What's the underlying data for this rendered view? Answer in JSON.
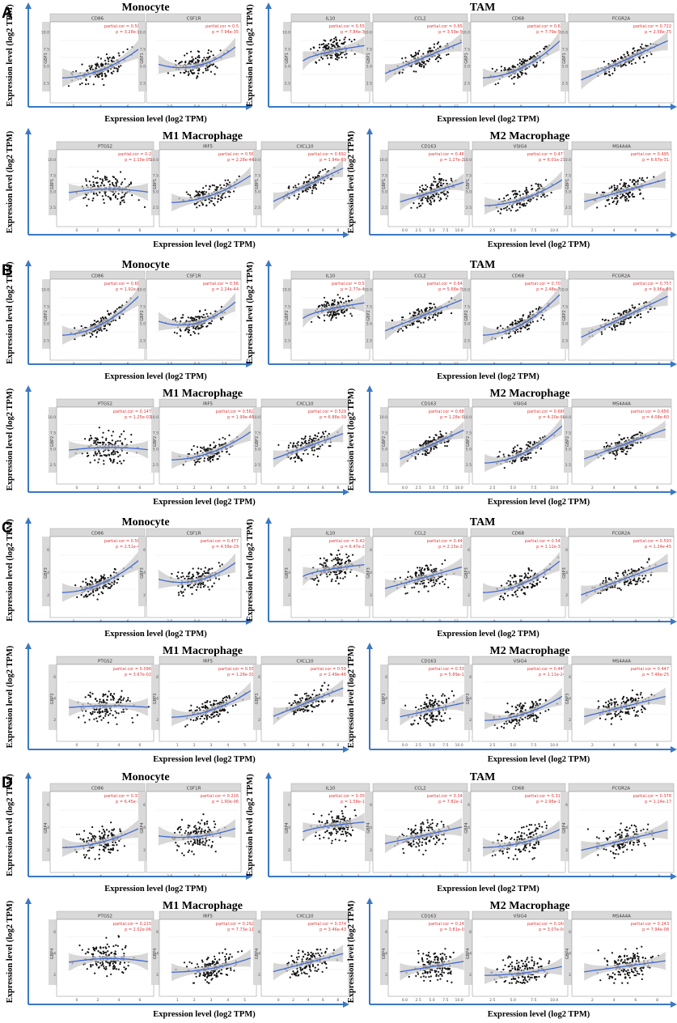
{
  "colors": {
    "axis_arrow": "#3b78c4",
    "fit_line": "#4169d4",
    "ci_band": "#c9c9c9",
    "points": "#111111",
    "stats": "#e0393a",
    "strip": "#d9d9d9"
  },
  "axis_label_y": "Expression level (log2 TPM)",
  "axis_label_x": "Expression level (log2 TPM)",
  "partial_cor_prefix": "partial.cor = ",
  "p_prefix": "p = ",
  "chart_data": [
    {
      "panel": "A",
      "gene": "GBP1",
      "groups": [
        {
          "title": "Monocyte",
          "subplots": [
            {
              "marker": "CD86",
              "cor": "0.504",
              "p": "3.28e-33",
              "xticks": [
                2,
                4,
                6
              ],
              "yticks": [
                "2.5",
                "5.0",
                "7.5",
                "10.0"
              ]
            },
            {
              "marker": "CSF1R",
              "cor": "0.5",
              "p": "7.94e-35",
              "xticks": [
                "2.5",
                "5.0",
                "7.5"
              ],
              "yticks": [
                "2.5",
                "5.0",
                "7.5",
                "10.0"
              ]
            }
          ]
        },
        {
          "title": "TAM",
          "subplots": [
            {
              "marker": "IL10",
              "cor": "0.558",
              "p": "7.84e-39",
              "xticks": [
                0,
                1,
                2,
                3
              ],
              "yticks": [
                "2.5",
                "5.0",
                "7.5",
                "10.0"
              ]
            },
            {
              "marker": "CCL2",
              "cor": "0.652",
              "p": "3.59e-58",
              "xticks": [
                0,
                3,
                6,
                9,
                12
              ],
              "yticks": [
                "2.5",
                "5.0",
                "7.5",
                "10.0"
              ]
            },
            {
              "marker": "CD68",
              "cor": "0.64",
              "p": "7.79e-58",
              "xticks": [
                4,
                6,
                8
              ],
              "yticks": [
                "2.5",
                "5.0",
                "7.5",
                "10.0"
              ]
            },
            {
              "marker": "FCGR2A",
              "cor": "0.722",
              "p": "2.58e-75",
              "xticks": [
                2,
                4,
                6,
                8
              ],
              "yticks": [
                "2.5",
                "5.0",
                "7.5",
                "10.0"
              ]
            }
          ]
        },
        {
          "title": "M1 Macrophage",
          "subplots": [
            {
              "marker": "PTGS2",
              "cor": "0.2",
              "p": "1.10e-05",
              "xticks": [
                0,
                2,
                4,
                6
              ],
              "yticks": [
                "2.5",
                "5.0",
                "7.5",
                "10.0"
              ]
            },
            {
              "marker": "IRF5",
              "cor": "0.56",
              "p": "2.28e-44",
              "xticks": [
                1,
                2,
                3,
                4,
                5
              ],
              "yticks": [
                "2.5",
                "5.0",
                "7.5",
                "10.0"
              ]
            },
            {
              "marker": "CXCL10",
              "cor": "0.692",
              "p": "1.94e-69",
              "xticks": [
                0,
                2,
                4,
                6,
                8
              ],
              "yticks": [
                "2.5",
                "5.0",
                "7.5",
                "10.0"
              ]
            }
          ]
        },
        {
          "title": "M2 Macrophage",
          "subplots": [
            {
              "marker": "CD163",
              "cor": "0.465",
              "p": "1.27e-29",
              "xticks": [
                "0.0",
                "2.5",
                "5.0",
                "7.5",
                "10.0"
              ],
              "yticks": [
                "2.5",
                "5.0",
                "7.5",
                "10.0"
              ]
            },
            {
              "marker": "VSIG4",
              "cor": "0.477",
              "p": "6.01e-27",
              "xticks": [
                "2.5",
                "5.0",
                "7.5",
                "10.0"
              ],
              "yticks": [
                "2.5",
                "5.0",
                "7.5",
                "10.0"
              ]
            },
            {
              "marker": "MS4A4A",
              "cor": "0.495",
              "p": "6.67e-31",
              "xticks": [
                2,
                4,
                6,
                8
              ],
              "yticks": [
                "2.5",
                "5.0",
                "7.5",
                "10.0"
              ]
            }
          ]
        }
      ]
    },
    {
      "panel": "B",
      "gene": "GBP2",
      "groups": [
        {
          "title": "Monocyte",
          "subplots": [
            {
              "marker": "CD86",
              "cor": "0.685",
              "p": "1.92e-67",
              "xticks": [
                2,
                4,
                6
              ],
              "yticks": [
                "2.5",
                "5.0",
                "7.5",
                "10.0"
              ]
            },
            {
              "marker": "CSF1R",
              "cor": "0.56",
              "p": "2.24e-44",
              "xticks": [
                "2.5",
                "5.0",
                "7.5"
              ],
              "yticks": [
                "2.5",
                "5.0",
                "7.5",
                "10.0"
              ]
            }
          ]
        },
        {
          "title": "TAM",
          "subplots": [
            {
              "marker": "IL10",
              "cor": "0.56",
              "p": "2.77e-44",
              "xticks": [
                0,
                1,
                2,
                3
              ],
              "yticks": [
                "2.5",
                "5.0",
                "7.5",
                "10.0"
              ]
            },
            {
              "marker": "CCL2",
              "cor": "0.647",
              "p": "5.68e-58",
              "xticks": [
                0,
                3,
                6,
                9,
                12
              ],
              "yticks": [
                "2.5",
                "5.0",
                "7.5",
                "10.0"
              ]
            },
            {
              "marker": "CD68",
              "cor": "0.705",
              "p": "2.48e-74",
              "xticks": [
                4,
                6,
                8
              ],
              "yticks": [
                "2.5",
                "5.0",
                "7.5",
                "10.0"
              ]
            },
            {
              "marker": "FCGR2A",
              "cor": "0.757",
              "p": "9.96e-89",
              "xticks": [
                2,
                4,
                6,
                8
              ],
              "yticks": [
                "2.5",
                "5.0",
                "7.5",
                "10.0"
              ]
            }
          ]
        },
        {
          "title": "M1 Macrophage",
          "subplots": [
            {
              "marker": "PTGS2",
              "cor": "0.147",
              "p": "1.25e-03",
              "xticks": [
                0,
                2,
                4,
                6
              ],
              "yticks": [
                "2.5",
                "5.0",
                "7.5",
                "10.0"
              ]
            },
            {
              "marker": "IRF5",
              "cor": "0.582",
              "p": "1.99e-46",
              "xticks": [
                1,
                2,
                3,
                4,
                5
              ],
              "yticks": [
                "2.5",
                "5.0",
                "7.5",
                "10.0"
              ]
            },
            {
              "marker": "CXCL10",
              "cor": "0.529",
              "p": "6.88e-39",
              "xticks": [
                0,
                2,
                4,
                6,
                8
              ],
              "yticks": [
                "2.5",
                "5.0",
                "7.5",
                "10.0"
              ]
            }
          ]
        },
        {
          "title": "M2 Macrophage",
          "subplots": [
            {
              "marker": "CD163",
              "cor": "0.685",
              "p": "1.28e-58",
              "xticks": [
                "0.0",
                "2.5",
                "5.0",
                "7.5",
                "10.0"
              ],
              "yticks": [
                "2.5",
                "5.0",
                "7.5",
                "10.0"
              ]
            },
            {
              "marker": "VSIG4",
              "cor": "0.686",
              "p": "4.20e-66",
              "xticks": [
                "2.5",
                "5.0",
                "7.5",
                "10.0"
              ],
              "yticks": [
                "2.5",
                "5.0",
                "7.5",
                "10.0"
              ]
            },
            {
              "marker": "MS4A4A",
              "cor": "0.656",
              "p": "4.08e-60",
              "xticks": [
                2,
                4,
                6,
                8
              ],
              "yticks": [
                "2.5",
                "5.0",
                "7.5",
                "10.0"
              ]
            }
          ]
        }
      ]
    },
    {
      "panel": "C",
      "gene": "GBP3",
      "groups": [
        {
          "title": "Monocyte",
          "subplots": [
            {
              "marker": "CD86",
              "cor": "0.565",
              "p": "2.51e-42",
              "xticks": [
                2,
                4,
                6
              ],
              "yticks": [
                2,
                4,
                6
              ]
            },
            {
              "marker": "CSF1R",
              "cor": "0.477",
              "p": "4.58e-29",
              "xticks": [
                "2.5",
                "5.0",
                "7.5"
              ],
              "yticks": [
                2,
                4,
                6
              ]
            }
          ]
        },
        {
          "title": "TAM",
          "subplots": [
            {
              "marker": "IL10",
              "cor": "0.429",
              "p": "6.47e-23",
              "xticks": [
                0,
                1,
                2,
                3
              ],
              "yticks": [
                2,
                4,
                6
              ]
            },
            {
              "marker": "CCL2",
              "cor": "0.448",
              "p": "2.15e-25",
              "xticks": [
                0,
                3,
                6,
                9,
                12
              ],
              "yticks": [
                2,
                4,
                6
              ]
            },
            {
              "marker": "CD68",
              "cor": "0.545",
              "p": "1.12e-38",
              "xticks": [
                4,
                6,
                8
              ],
              "yticks": [
                2,
                4,
                6
              ]
            },
            {
              "marker": "FCGR2A",
              "cor": "0.593",
              "p": "1.24e-45",
              "xticks": [
                2,
                4,
                6,
                8
              ],
              "yticks": [
                2,
                4,
                6
              ]
            }
          ]
        },
        {
          "title": "M1 Macrophage",
          "subplots": [
            {
              "marker": "PTGS2",
              "cor": "0.096",
              "p": "3.67e-02",
              "xticks": [
                0,
                2,
                4,
                6
              ],
              "yticks": [
                2,
                4,
                6
              ]
            },
            {
              "marker": "IRF5",
              "cor": "0.55",
              "p": "1.28e-39",
              "xticks": [
                1,
                2,
                3,
                4,
                5
              ],
              "yticks": [
                2,
                4,
                6
              ]
            },
            {
              "marker": "CXCL10",
              "cor": "0.59",
              "p": "2.49e-46",
              "xticks": [
                0,
                2,
                4,
                6,
                8
              ],
              "yticks": [
                2,
                4,
                6
              ]
            }
          ]
        },
        {
          "title": "M2 Macrophage",
          "subplots": [
            {
              "marker": "CD163",
              "cor": "0.332",
              "p": "5.89e-14",
              "xticks": [
                "0.0",
                "2.5",
                "5.0",
                "7.5",
                "10.0"
              ],
              "yticks": [
                2,
                4,
                6
              ]
            },
            {
              "marker": "VSIG4",
              "cor": "0.445",
              "p": "1.11e-24",
              "xticks": [
                "2.5",
                "5.0",
                "7.5",
                "10.0"
              ],
              "yticks": [
                2,
                4,
                6
              ]
            },
            {
              "marker": "MS4A4A",
              "cor": "0.447",
              "p": "7.46e-25",
              "xticks": [
                2,
                4,
                6,
                8
              ],
              "yticks": [
                2,
                4,
                6
              ]
            }
          ]
        }
      ]
    },
    {
      "panel": "D",
      "gene": "GBP4",
      "groups": [
        {
          "title": "Monocyte",
          "subplots": [
            {
              "marker": "CD86",
              "cor": "0.334",
              "p": "6.45e-14",
              "xticks": [
                2,
                4,
                6
              ],
              "yticks": [
                2,
                4,
                6
              ]
            },
            {
              "marker": "CSF1R",
              "cor": "0.216",
              "p": "1.90e-06",
              "xticks": [
                "2.5",
                "5.0",
                "7.5"
              ],
              "yticks": [
                2,
                4,
                6
              ]
            }
          ]
        },
        {
          "title": "TAM",
          "subplots": [
            {
              "marker": "IL10",
              "cor": "0.354",
              "p": "1.58e-15",
              "xticks": [
                0,
                1,
                2,
                3
              ],
              "yticks": [
                2,
                4,
                6
              ]
            },
            {
              "marker": "CCL2",
              "cor": "0.345",
              "p": "7.82e-15",
              "xticks": [
                0,
                3,
                6,
                9,
                12
              ],
              "yticks": [
                2,
                4,
                6
              ]
            },
            {
              "marker": "CD68",
              "cor": "0.312",
              "p": "2.96e-12",
              "xticks": [
                4,
                6,
                8
              ],
              "yticks": [
                2,
                4,
                6
              ]
            },
            {
              "marker": "FCGR2A",
              "cor": "0.378",
              "p": "1.14e-17",
              "xticks": [
                2,
                4,
                6,
                8
              ],
              "yticks": [
                2,
                4,
                6
              ]
            }
          ]
        },
        {
          "title": "M1 Macrophage",
          "subplots": [
            {
              "marker": "PTGS2",
              "cor": "0.215",
              "p": "2.02e-06",
              "xticks": [
                0,
                2,
                4,
                6
              ],
              "yticks": [
                2,
                4,
                6
              ]
            },
            {
              "marker": "IRF5",
              "cor": "0.292",
              "p": "7.73e-11",
              "xticks": [
                1,
                2,
                3,
                4,
                5
              ],
              "yticks": [
                2,
                4,
                6
              ]
            },
            {
              "marker": "CXCL10",
              "cor": "0.374",
              "p": "3.46e-43",
              "xticks": [
                0,
                2,
                4,
                6,
                8
              ],
              "yticks": [
                2,
                4,
                6
              ]
            }
          ]
        },
        {
          "title": "M2 Macrophage",
          "subplots": [
            {
              "marker": "CD163",
              "cor": "0.248",
              "p": "3.81e-08",
              "xticks": [
                "0.0",
                "2.5",
                "5.0",
                "7.5",
                "10.0"
              ],
              "yticks": [
                2,
                4,
                6
              ]
            },
            {
              "marker": "VSIG4",
              "cor": "0.164",
              "p": "3.07e-04",
              "xticks": [
                "2.5",
                "5.0",
                "7.5",
                "10.0"
              ],
              "yticks": [
                2,
                4,
                6
              ]
            },
            {
              "marker": "MS4A4A",
              "cor": "0.243",
              "p": "7.94e-08",
              "xticks": [
                2,
                4,
                6,
                8
              ],
              "yticks": [
                2,
                4,
                6
              ]
            }
          ]
        }
      ]
    }
  ]
}
